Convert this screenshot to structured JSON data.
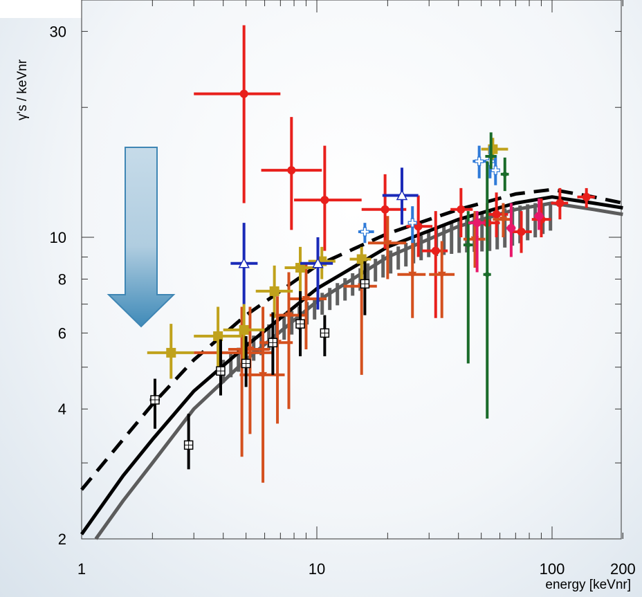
{
  "chart_data": {
    "type": "scatter",
    "title": "",
    "xlabel": "energy [keVnr]",
    "ylabel": "γ's / keVnr",
    "x_scale": "log",
    "y_scale": "log",
    "xlim": [
      1,
      200
    ],
    "ylim": [
      2,
      35
    ],
    "x_ticks": [
      {
        "value": 1,
        "label": "1"
      },
      {
        "value": 10,
        "label": "10"
      },
      {
        "value": 100,
        "label": "100"
      },
      {
        "value": 200,
        "label": "200"
      }
    ],
    "y_ticks": [
      {
        "value": 2,
        "label": "2"
      },
      {
        "value": 4,
        "label": "4"
      },
      {
        "value": 6,
        "label": "6"
      },
      {
        "value": 8,
        "label": "8"
      },
      {
        "value": 10,
        "label": "10"
      },
      {
        "value": 30,
        "label": "30"
      }
    ],
    "grid": false,
    "annotation": {
      "type": "down-arrow",
      "color": "#5b9cc4"
    },
    "curves": [
      {
        "style": "dashed",
        "color": "#000000",
        "x": [
          1,
          1.5,
          2,
          3,
          5,
          10,
          20,
          40,
          70,
          100,
          150,
          200
        ],
        "y": [
          2.6,
          3.4,
          4.1,
          5.2,
          6.6,
          8.6,
          10.2,
          11.6,
          12.6,
          12.9,
          12.4,
          12.0
        ]
      },
      {
        "style": "solid",
        "color": "#000000",
        "x": [
          1,
          1.5,
          2,
          3,
          5,
          10,
          20,
          40,
          70,
          100,
          150,
          200
        ],
        "y": [
          2.05,
          2.8,
          3.4,
          4.4,
          5.6,
          7.6,
          9.5,
          11.0,
          12.0,
          12.4,
          12.0,
          11.7
        ]
      },
      {
        "style": "solid",
        "color": "#5c5c5c",
        "x": [
          1.15,
          1.5,
          2,
          3,
          5,
          10,
          20,
          40,
          70,
          100,
          150,
          200
        ],
        "y": [
          2.0,
          2.45,
          3.0,
          4.0,
          5.2,
          7.1,
          9.0,
          10.6,
          11.6,
          12.0,
          11.6,
          11.3
        ]
      }
    ],
    "hatch_band": {
      "color": "#606060",
      "x": [
        4,
        6,
        8,
        10,
        13,
        17,
        22,
        30,
        40,
        55,
        70,
        85,
        100
      ],
      "y_low": [
        4.6,
        5.4,
        6.0,
        6.5,
        7.1,
        7.8,
        8.4,
        9.0,
        9.2,
        9.3,
        9.6,
        10.0,
        10.4
      ],
      "y_high": [
        5.2,
        6.2,
        6.8,
        7.3,
        8.0,
        8.8,
        9.5,
        10.3,
        11.0,
        11.5,
        11.8,
        12.0,
        12.0
      ]
    },
    "series": [
      {
        "color": "#e8201c",
        "marker": "circle",
        "points": [
          {
            "x": 4.9,
            "y": 21.5,
            "xerr": [
              3.0,
              7.0
            ],
            "yerr": [
              12.0,
              31.0
            ]
          },
          {
            "x": 7.8,
            "y": 14.3,
            "xerr": [
              5.8,
              10.5
            ],
            "yerr": [
              10.4,
              19.0
            ]
          },
          {
            "x": 10.8,
            "y": 12.2,
            "xerr": [
              8.0,
              15.5
            ],
            "yerr": [
              9.3,
              16.3
            ]
          },
          {
            "x": 19.5,
            "y": 11.6,
            "xerr": [
              15.5,
              24.0
            ],
            "yerr": [
              9.4,
              14.0
            ]
          },
          {
            "x": 27.0,
            "y": 10.6,
            "xerr": [
              24.0,
              31.0
            ],
            "yerr": [
              9.0,
              12.5
            ]
          },
          {
            "x": 32.0,
            "y": 9.3,
            "xerr": [
              28.0,
              36.0
            ],
            "yerr": [
              6.5,
              11.5
            ]
          },
          {
            "x": 41.0,
            "y": 11.6,
            "xerr": [
              37.0,
              46.0
            ],
            "yerr": [
              10.0,
              13.0
            ]
          },
          {
            "x": 53.0,
            "y": 10.8,
            "xerr": [
              46.0,
              60.0
            ],
            "yerr": [
              9.8,
              12.0
            ]
          },
          {
            "x": 58.0,
            "y": 11.3,
            "xerr": [
              53.0,
              65.0
            ],
            "yerr": [
              10.0,
              12.7
            ]
          },
          {
            "x": 74.0,
            "y": 10.3,
            "xerr": [
              66.0,
              82.0
            ],
            "yerr": [
              9.2,
              11.5
            ]
          },
          {
            "x": 90.0,
            "y": 11.0,
            "xerr": [
              82.0,
              99.0
            ],
            "yerr": [
              10.0,
              12.3
            ]
          },
          {
            "x": 108.0,
            "y": 12.0,
            "xerr": [
              99.0,
              117.0
            ],
            "yerr": [
              11.0,
              13.0
            ]
          },
          {
            "x": 140.0,
            "y": 12.4,
            "xerr": [
              128.0,
              152.0
            ],
            "yerr": [
              11.7,
              13.0
            ]
          }
        ]
      },
      {
        "color": "#d4501e",
        "marker": "triangle-down",
        "points": [
          {
            "x": 4.8,
            "y": 5.4,
            "xerr": [
              3.0,
              6.5
            ],
            "yerr": [
              3.1,
              6.9
            ]
          },
          {
            "x": 5.2,
            "y": 5.5,
            "xerr": [
              4.2,
              6.3
            ],
            "yerr": [
              3.5,
              6.9
            ]
          },
          {
            "x": 5.9,
            "y": 4.8,
            "xerr": [
              4.7,
              7.3
            ],
            "yerr": [
              2.7,
              6.9
            ]
          },
          {
            "x": 6.8,
            "y": 5.7,
            "xerr": [
              5.7,
              7.9
            ],
            "yerr": [
              3.7,
              7.3
            ]
          },
          {
            "x": 7.6,
            "y": 6.6,
            "xerr": [
              6.3,
              9.0
            ],
            "yerr": [
              4.0,
              8.3
            ]
          },
          {
            "x": 9.0,
            "y": 7.2,
            "xerr": [
              7.5,
              11.0
            ],
            "yerr": [
              5.5,
              8.7
            ]
          },
          {
            "x": 15.5,
            "y": 7.7,
            "xerr": [
              13.0,
              18.0
            ],
            "yerr": [
              4.8,
              8.8
            ]
          },
          {
            "x": 20.0,
            "y": 9.7,
            "xerr": [
              16.5,
              24.0
            ],
            "yerr": [
              8.0,
              11.2
            ]
          },
          {
            "x": 25.5,
            "y": 8.2,
            "xerr": [
              22.0,
              29.0
            ],
            "yerr": [
              6.5,
              9.8
            ]
          },
          {
            "x": 34.0,
            "y": 8.2,
            "xerr": [
              30.0,
              38.5
            ],
            "yerr": [
              6.5,
              9.8
            ]
          },
          {
            "x": 47.0,
            "y": 9.9,
            "xerr": [
              42.0,
              52.0
            ],
            "yerr": [
              8.5,
              11.5
            ]
          },
          {
            "x": 62.0,
            "y": 11.0,
            "xerr": [
              56.0,
              68.0
            ],
            "yerr": [
              10.0,
              12.0
            ]
          }
        ]
      },
      {
        "color": "#c0a21c",
        "marker": "square",
        "points": [
          {
            "x": 2.4,
            "y": 5.4,
            "xerr": [
              1.9,
              3.0
            ],
            "yerr": [
              4.7,
              6.3
            ]
          },
          {
            "x": 3.8,
            "y": 5.9,
            "xerr": [
              3.0,
              4.8
            ],
            "yerr": [
              4.9,
              6.9
            ]
          },
          {
            "x": 4.9,
            "y": 6.1,
            "xerr": [
              4.0,
              6.0
            ],
            "yerr": [
              5.2,
              7.0
            ]
          },
          {
            "x": 6.6,
            "y": 7.5,
            "xerr": [
              5.5,
              7.9
            ],
            "yerr": [
              6.5,
              8.6
            ]
          },
          {
            "x": 8.5,
            "y": 8.5,
            "xerr": [
              7.3,
              9.8
            ],
            "yerr": [
              7.4,
              9.5
            ]
          },
          {
            "x": 10.5,
            "y": 8.8,
            "xerr": [
              9.2,
              12.0
            ],
            "yerr": [
              8.0,
              9.5
            ]
          },
          {
            "x": 15.5,
            "y": 8.9,
            "xerr": [
              13.8,
              17.0
            ],
            "yerr": [
              8.0,
              9.5
            ]
          },
          {
            "x": 56.0,
            "y": 16.0,
            "xerr": [
              50.0,
              65.0
            ],
            "yerr": [
              15.0,
              17.0
            ]
          }
        ]
      },
      {
        "color": "#1a2ab8",
        "marker": "triangle-up",
        "points": [
          {
            "x": 4.9,
            "y": 8.7,
            "xerr": [
              4.3,
              5.6
            ],
            "yerr": [
              7.0,
              10.8
            ]
          },
          {
            "x": 10.1,
            "y": 8.7,
            "xerr": [
              8.5,
              11.7
            ],
            "yerr": [
              6.8,
              10.0
            ]
          },
          {
            "x": 23.0,
            "y": 12.5,
            "xerr": [
              19.0,
              27.0
            ],
            "yerr": [
              10.7,
              14.5
            ]
          }
        ]
      },
      {
        "color": "#2f7ad8",
        "marker": "cross-open",
        "points": [
          {
            "x": 16.0,
            "y": 10.3,
            "xerr": [
              15.0,
              17.5
            ],
            "yerr": [
              9.7,
              10.8
            ]
          },
          {
            "x": 25.5,
            "y": 10.8,
            "xerr": [
              24.5,
              26.5
            ],
            "yerr": [
              9.7,
              11.8
            ]
          },
          {
            "x": 49.0,
            "y": 15.0,
            "xerr": [
              46.0,
              52.0
            ],
            "yerr": [
              13.7,
              16.3
            ]
          },
          {
            "x": 54.5,
            "y": 15.0,
            "xerr": [
              52.0,
              57.0
            ],
            "yerr": [
              13.7,
              16.3
            ]
          },
          {
            "x": 57.5,
            "y": 14.3,
            "xerr": [
              55.5,
              59.5
            ],
            "yerr": [
              13.2,
              15.5
            ]
          }
        ]
      },
      {
        "color": "#1a6b2a",
        "marker": "diamond",
        "points": [
          {
            "x": 44.0,
            "y": 9.6,
            "xerr": [
              42.0,
              46.0
            ],
            "yerr": [
              5.1,
              11.5
            ]
          },
          {
            "x": 53.0,
            "y": 8.2,
            "xerr": [
              51.0,
              55.0
            ],
            "yerr": [
              3.8,
              15.0
            ]
          },
          {
            "x": 55.0,
            "y": 15.4,
            "xerr": [
              52.0,
              58.0
            ],
            "yerr": [
              14.4,
              17.5
            ]
          },
          {
            "x": 63.0,
            "y": 14.0,
            "xerr": [
              60.5,
              65.5
            ],
            "yerr": [
              12.8,
              15.3
            ]
          }
        ]
      },
      {
        "color": "#e8186a",
        "marker": "circle",
        "points": [
          {
            "x": 48.0,
            "y": 10.8,
            "xerr": [
              44.0,
              52.0
            ],
            "yerr": [
              8.3,
              11.5
            ]
          },
          {
            "x": 67.0,
            "y": 10.5,
            "xerr": [
              64.0,
              70.0
            ],
            "yerr": [
              9.0,
              12.0
            ]
          },
          {
            "x": 88.0,
            "y": 11.2,
            "xerr": [
              84.0,
              92.0
            ],
            "yerr": [
              10.4,
              12.3
            ]
          }
        ]
      },
      {
        "color": "#000000",
        "marker": "square-open",
        "points": [
          {
            "x": 2.05,
            "y": 4.2,
            "xerr": [
              1.95,
              2.15
            ],
            "yerr": [
              3.6,
              4.7
            ]
          },
          {
            "x": 2.85,
            "y": 3.3,
            "xerr": [
              2.75,
              2.95
            ],
            "yerr": [
              2.9,
              3.9
            ]
          },
          {
            "x": 3.9,
            "y": 4.9,
            "xerr": [
              3.8,
              4.0
            ],
            "yerr": [
              4.3,
              5.8
            ]
          },
          {
            "x": 5.0,
            "y": 5.1,
            "xerr": [
              4.9,
              5.1
            ],
            "yerr": [
              4.5,
              5.9
            ]
          },
          {
            "x": 6.5,
            "y": 5.7,
            "xerr": [
              6.4,
              6.6
            ],
            "yerr": [
              4.8,
              6.7
            ]
          },
          {
            "x": 8.5,
            "y": 6.3,
            "xerr": [
              8.4,
              8.6
            ],
            "yerr": [
              5.3,
              7.5
            ]
          },
          {
            "x": 10.8,
            "y": 6.0,
            "xerr": [
              10.7,
              10.9
            ],
            "yerr": [
              5.3,
              6.6
            ]
          },
          {
            "x": 16.0,
            "y": 7.8,
            "xerr": [
              15.9,
              16.1
            ],
            "yerr": [
              6.6,
              8.8
            ]
          }
        ]
      }
    ]
  }
}
